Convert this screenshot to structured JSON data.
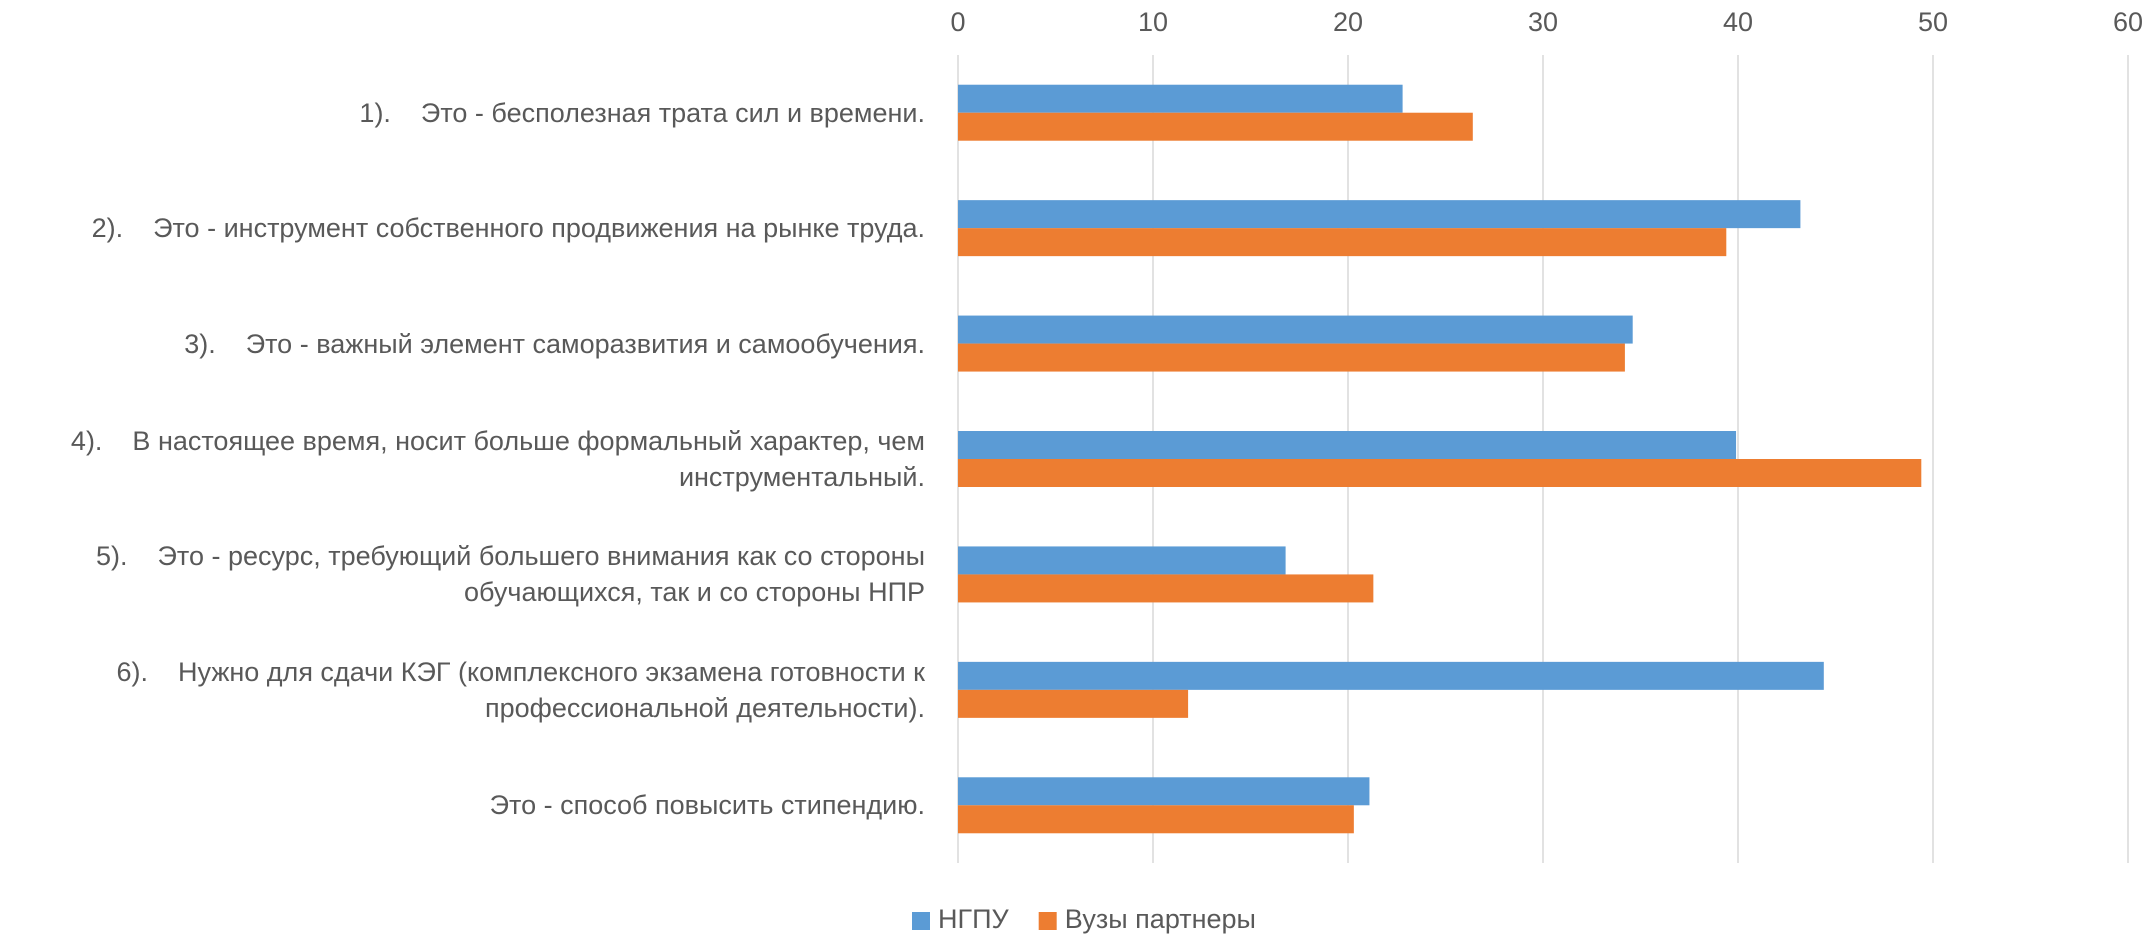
{
  "chart_data": {
    "type": "barh",
    "categories": [
      "1).    Это - бесполезная трата сил и времени.",
      "2).    Это - инструмент собственного продвижения на рынке труда.",
      "3).    Это - важный элемент саморазвития и самообучения.",
      "4).    В настоящее время, носит больше формальный характер, чем инструментальный.",
      "5).    Это - ресурс, требующий большего внимания как со стороны обучающихся, так и со стороны НПР",
      "6).    Нужно для сдачи КЭГ (комплексного экзамена готовности к профессиональной деятельности).",
      "Это - способ повысить стипендию."
    ],
    "series": [
      {
        "name": "НГПУ",
        "color": "#5b9bd5",
        "values": [
          22.8,
          43.2,
          34.6,
          39.9,
          16.8,
          44.4,
          21.1
        ]
      },
      {
        "name": "Вузы партнеры",
        "color": "#ed7d31",
        "values": [
          26.4,
          39.4,
          34.2,
          49.4,
          21.3,
          11.8,
          20.3
        ]
      }
    ],
    "xlim": [
      0,
      60
    ],
    "xticks": [
      0,
      10,
      20,
      30,
      40,
      50,
      60
    ],
    "grid": true,
    "legend": "bottom"
  }
}
